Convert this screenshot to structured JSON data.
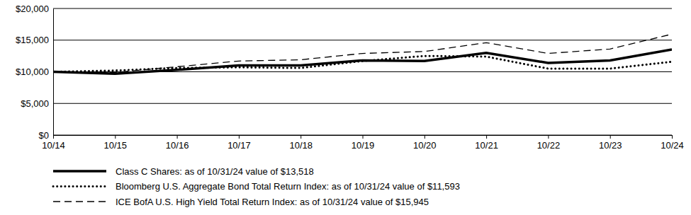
{
  "chart_data": {
    "type": "line",
    "categories": [
      "10/14",
      "10/15",
      "10/16",
      "10/17",
      "10/18",
      "10/19",
      "10/20",
      "10/21",
      "10/22",
      "10/23",
      "10/24"
    ],
    "series": [
      {
        "name": "Class C Shares: as of 10/31/24 value of $13,518",
        "color": "#000000",
        "line_style": "solid",
        "values": [
          10000,
          9700,
          10300,
          11000,
          11000,
          11800,
          11700,
          13000,
          11400,
          11800,
          13518
        ]
      },
      {
        "name": "Bloomberg U.S. Aggregate Bond Total Return Index: as of 10/31/24 value of $11,593",
        "color": "#000000",
        "line_style": "dotted",
        "values": [
          10000,
          10200,
          10600,
          10700,
          10600,
          11700,
          12500,
          12400,
          10500,
          10500,
          11593
        ]
      },
      {
        "name": "ICE BofA U.S. High Yield Total Return Index: as of 10/31/24 value of $15,945",
        "color": "#000000",
        "line_style": "dashed",
        "values": [
          10000,
          9900,
          10800,
          11700,
          11900,
          12900,
          13200,
          14600,
          12900,
          13600,
          15945
        ]
      }
    ],
    "ylim": [
      0,
      20000
    ],
    "yticks": [
      {
        "value": 0,
        "label": "$0"
      },
      {
        "value": 5000,
        "label": "$5,000"
      },
      {
        "value": 10000,
        "label": "$10,000"
      },
      {
        "value": 15000,
        "label": "$15,000"
      },
      {
        "value": 20000,
        "label": "$20,000"
      }
    ],
    "grid": true,
    "legend": "bottom"
  }
}
